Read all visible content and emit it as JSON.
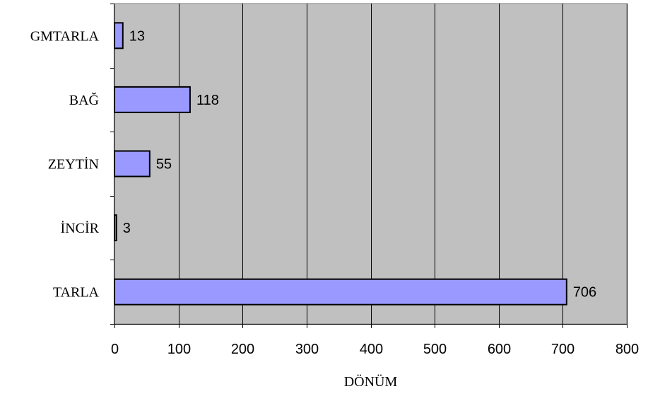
{
  "chart_data": {
    "type": "bar",
    "orientation": "horizontal",
    "categories": [
      "GMTARLA",
      "BAĞ",
      "ZEYTİN",
      "İNCİR",
      "TARLA"
    ],
    "values": [
      13,
      118,
      55,
      3,
      706
    ],
    "data_labels": [
      "13",
      "118",
      "55",
      "3",
      "706"
    ],
    "title": "",
    "xlabel": "DÖNÜM",
    "ylabel": "",
    "xlim": [
      0,
      800
    ],
    "x_ticks": [
      0,
      100,
      200,
      300,
      400,
      500,
      600,
      700,
      800
    ],
    "x_tick_labels": [
      "0",
      "100",
      "200",
      "300",
      "400",
      "500",
      "600",
      "700",
      "800"
    ],
    "grid": "vertical",
    "legend": "none",
    "colors": {
      "bar_fill": "#9999ff",
      "bar_stroke": "#000000",
      "plot_background": "#c0c0c0",
      "gridline": "#000000",
      "page_background": "#ffffff"
    }
  }
}
